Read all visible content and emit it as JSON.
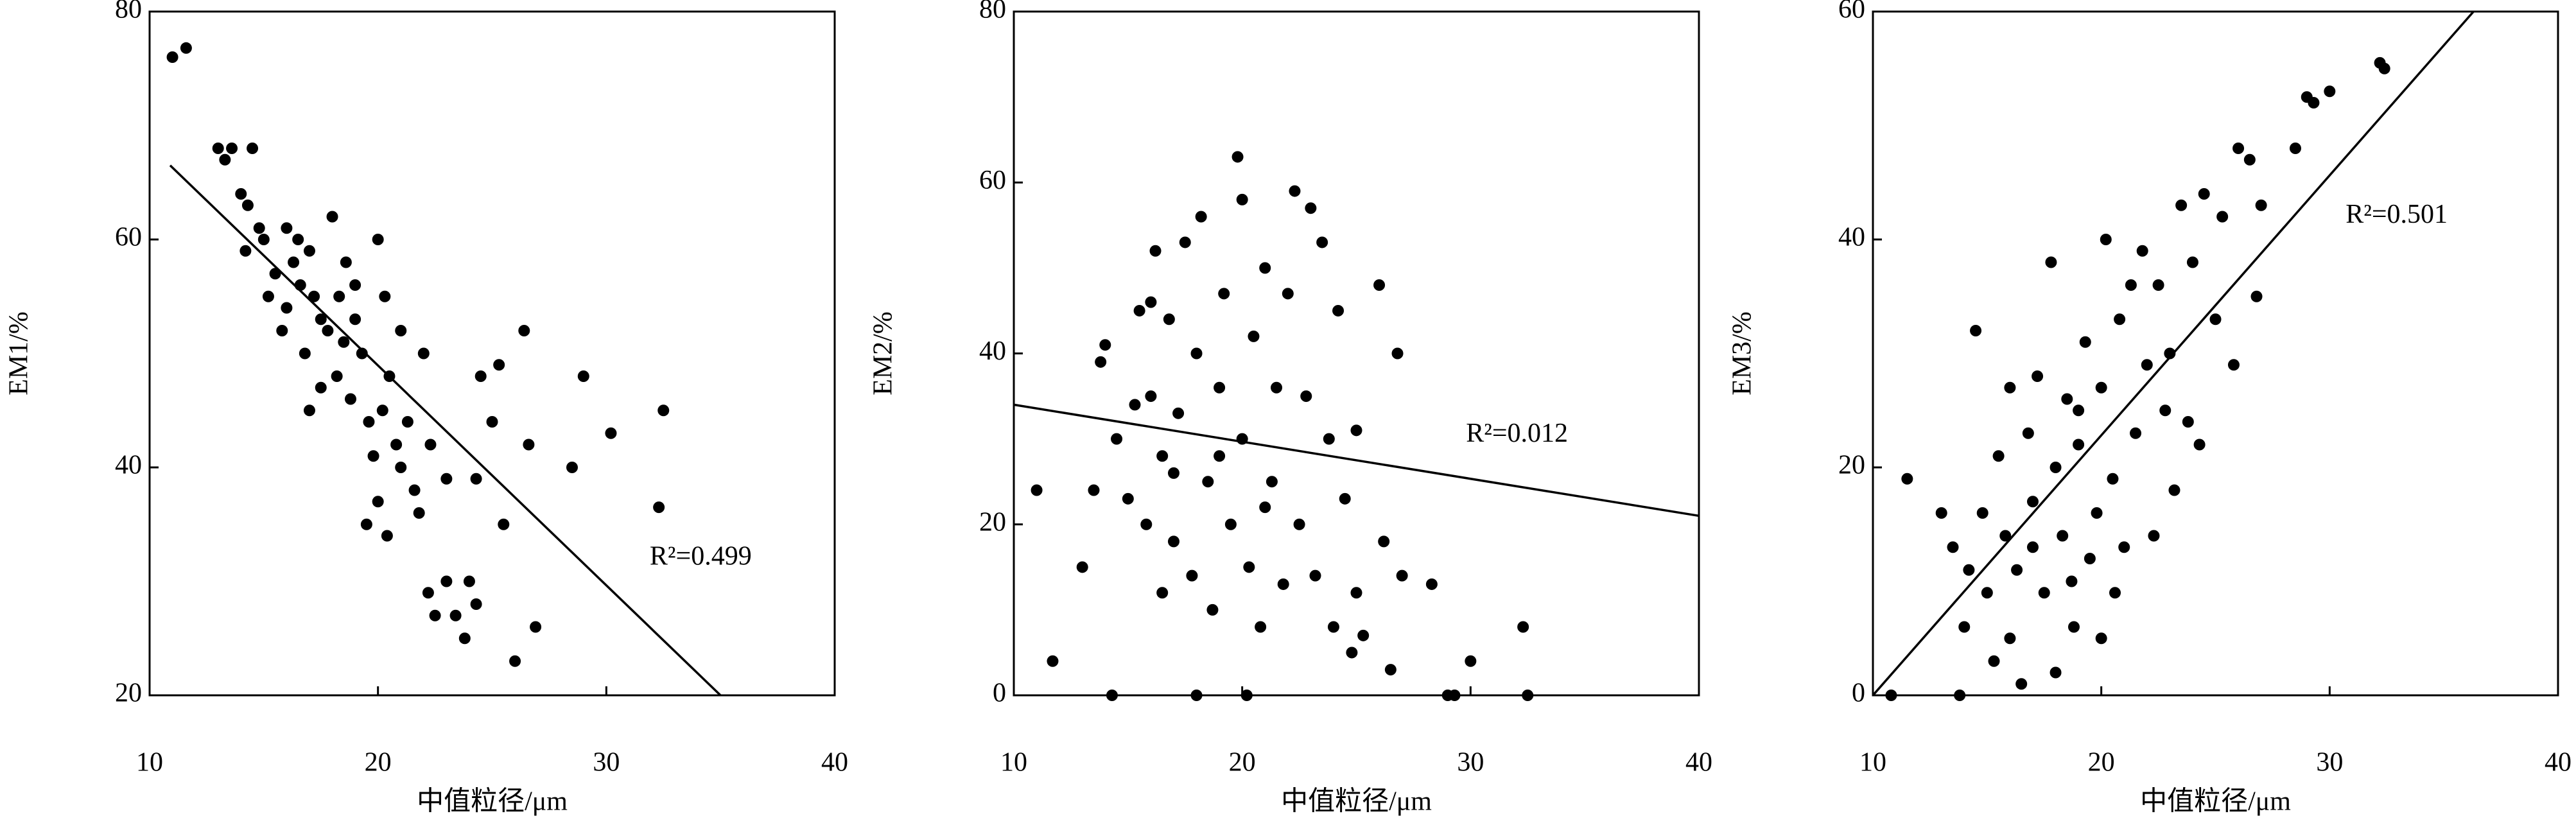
{
  "chart_data": [
    {
      "type": "scatter",
      "x_label": "中值粒径/μm",
      "y_label": "EM1/%",
      "annotation": "R²=0.499",
      "color": "#000000",
      "xlim": [
        10,
        40
      ],
      "ylim": [
        20,
        80
      ],
      "xticks": [
        10,
        20,
        30,
        40
      ],
      "yticks": [
        20,
        40,
        60,
        80
      ],
      "x": [
        11,
        11.6,
        13,
        13.3,
        13.6,
        14.5,
        14,
        14.3,
        14.8,
        14.2,
        15,
        15.5,
        16,
        16.3,
        16.6,
        17,
        17.2,
        17.5,
        16,
        15.8,
        16.8,
        17.8,
        18,
        18.3,
        18.5,
        18.2,
        17.5,
        18.8,
        19,
        19.3,
        19.6,
        19.8,
        20,
        20.3,
        20.5,
        20.2,
        20,
        20.4,
        21,
        21,
        21.3,
        21.6,
        21.8,
        22,
        22.3,
        22.2,
        22.5,
        23,
        23,
        23.4,
        23.8,
        24,
        24.3,
        24.5,
        24.3,
        25,
        25.3,
        25.5,
        26,
        26.4,
        26.6,
        26.9,
        28.5,
        29,
        30.2,
        32.3,
        32.5,
        19,
        18.6,
        20.8,
        17,
        16.5,
        15.2,
        19.5
      ],
      "values": [
        76,
        76.8,
        68,
        67,
        68,
        68,
        64,
        63,
        61,
        59,
        60,
        57,
        61,
        58,
        56,
        59,
        55,
        53,
        54,
        52,
        50,
        52,
        62,
        55,
        51,
        48,
        47,
        46,
        53,
        50,
        44,
        41,
        60,
        55,
        48,
        45,
        37,
        34,
        40,
        52,
        44,
        38,
        36,
        50,
        42,
        29,
        27,
        39,
        30,
        27,
        25,
        30,
        28,
        48,
        39,
        44,
        49,
        35,
        23,
        52,
        42,
        26,
        40,
        48,
        43,
        36.5,
        45,
        56,
        58,
        42,
        45,
        60,
        55,
        35
      ],
      "trend": {
        "x": [
          10.9,
          35
        ],
        "y": [
          66.5,
          20
        ]
      }
    },
    {
      "type": "scatter",
      "x_label": "中值粒径/μm",
      "y_label": "EM2/%",
      "annotation": "R²=0.012",
      "color": "#000000",
      "xlim": [
        10,
        40
      ],
      "ylim": [
        0,
        80
      ],
      "xticks": [
        10,
        20,
        30,
        40
      ],
      "yticks": [
        0,
        20,
        40,
        60,
        80
      ],
      "x": [
        11,
        11.7,
        13,
        13.5,
        13.8,
        14,
        14.3,
        14.5,
        15,
        15.3,
        15.5,
        15.8,
        16,
        16.2,
        16.5,
        16.5,
        16.8,
        17,
        17.2,
        17.5,
        17.8,
        18,
        18,
        18.2,
        18.5,
        18.7,
        19,
        19.2,
        19.5,
        19.8,
        20,
        20,
        20.2,
        20.3,
        20.5,
        20.8,
        21,
        21.3,
        21.5,
        21.8,
        22,
        22.3,
        22.5,
        22.8,
        23,
        23.2,
        23.5,
        23.8,
        24,
        24.2,
        24.5,
        24.8,
        25,
        25,
        25.3,
        26,
        26.2,
        26.5,
        26.8,
        27,
        28.3,
        29,
        29.3,
        30,
        32.3,
        32.5,
        19,
        17,
        21,
        16
      ],
      "values": [
        24,
        4,
        15,
        24,
        39,
        41,
        0,
        30,
        23,
        34,
        45,
        20,
        35,
        52,
        28,
        12,
        44,
        18,
        33,
        53,
        14,
        40,
        0,
        56,
        25,
        10,
        36,
        47,
        20,
        63,
        58,
        30,
        0,
        15,
        42,
        8,
        50,
        25,
        36,
        13,
        47,
        59,
        20,
        35,
        57,
        14,
        53,
        30,
        8,
        45,
        23,
        5,
        31,
        12,
        7,
        48,
        18,
        3,
        40,
        14,
        13,
        0,
        0,
        4,
        8,
        0,
        28,
        26,
        22,
        46
      ],
      "trend": {
        "x": [
          10,
          40
        ],
        "y": [
          34,
          21
        ]
      }
    },
    {
      "type": "scatter",
      "x_label": "中值粒径/μm",
      "y_label": "EM3/%",
      "annotation": "R²=0.501",
      "color": "#000000",
      "xlim": [
        10,
        40
      ],
      "ylim": [
        0,
        60
      ],
      "xticks": [
        10,
        20,
        30,
        40
      ],
      "yticks": [
        0,
        20,
        40,
        60
      ],
      "x": [
        10.8,
        11.5,
        13,
        13.5,
        13.8,
        14,
        14.2,
        14.5,
        14.8,
        15,
        15.3,
        15.5,
        15.8,
        16,
        16,
        16.3,
        16.5,
        16.8,
        17,
        17.2,
        17.5,
        17.8,
        18,
        18,
        18.3,
        18.5,
        18.7,
        19,
        19.3,
        19.5,
        19.8,
        20,
        20,
        20.2,
        20.5,
        20.8,
        21,
        21.3,
        21.5,
        21.8,
        22,
        22.3,
        22.5,
        23,
        23.2,
        23.5,
        23.8,
        24,
        24.3,
        24.5,
        25,
        25.3,
        25.8,
        26,
        26.5,
        26.8,
        27,
        28.5,
        29,
        29.3,
        30,
        32.2,
        32.4,
        18.8,
        17,
        19,
        20.6,
        22.8
      ],
      "values": [
        0,
        19,
        16,
        13,
        0,
        6,
        11,
        32,
        16,
        9,
        3,
        21,
        14,
        5,
        27,
        11,
        1,
        23,
        17,
        28,
        9,
        38,
        20,
        2,
        14,
        26,
        10,
        22,
        31,
        12,
        16,
        5,
        27,
        40,
        19,
        33,
        13,
        36,
        23,
        39,
        29,
        14,
        36,
        30,
        18,
        43,
        24,
        38,
        22,
        44,
        33,
        42,
        29,
        48,
        47,
        35,
        43,
        48,
        52.5,
        52,
        53,
        55.5,
        55,
        6,
        13,
        25,
        9,
        25
      ],
      "trend": {
        "x": [
          10,
          36.3
        ],
        "y": [
          0,
          60
        ]
      }
    }
  ]
}
